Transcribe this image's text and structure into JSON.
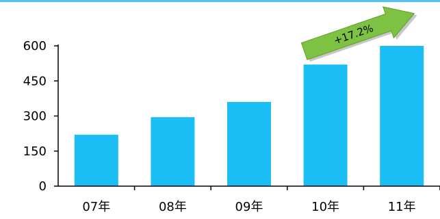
{
  "colors": {
    "bar": "#1ABEF5",
    "axis": "#000000",
    "top_border": "#4FC3F7",
    "arrow": "#7DC242",
    "arrow_edge": "#5E9E2E"
  },
  "chart_data": {
    "type": "bar",
    "categories": [
      "07年",
      "08年",
      "09年",
      "10年",
      "11年"
    ],
    "values": [
      220,
      295,
      360,
      520,
      600
    ],
    "ylim": [
      0,
      600
    ],
    "yticks": [
      0,
      150,
      300,
      450,
      600
    ],
    "grid": false,
    "legend": "none",
    "annotation": {
      "text": "+17.2%",
      "target_category": "11年",
      "shape": "arrow"
    }
  }
}
